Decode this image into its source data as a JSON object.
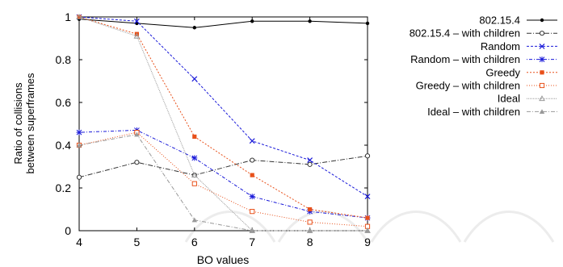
{
  "chart_data": {
    "type": "line",
    "xlabel": "BO values",
    "ylabel_lines": [
      "Ratio of collisions",
      "between superframes"
    ],
    "xlim": [
      4,
      9
    ],
    "ylim": [
      0,
      1
    ],
    "x": [
      4,
      5,
      6,
      7,
      8,
      9
    ],
    "x_ticks": [
      "4",
      "5",
      "6",
      "7",
      "8",
      "9"
    ],
    "y_ticks": [
      "0",
      "0.2",
      "0.4",
      "0.6",
      "0.8",
      "1"
    ],
    "grid": false,
    "legend_position": "right",
    "series": [
      {
        "name": "802.15.4",
        "color": "#000000",
        "marker": "dot",
        "dash": "",
        "values": [
          0.99,
          0.97,
          0.95,
          0.98,
          0.98,
          0.97
        ]
      },
      {
        "name": "802.15.4 – with children",
        "color": "#333333",
        "marker": "open-circle",
        "dash": "6,2,1,2",
        "values": [
          0.25,
          0.32,
          0.26,
          0.33,
          0.31,
          0.35
        ]
      },
      {
        "name": "Random",
        "color": "#1a1ad9",
        "marker": "x",
        "dash": "3,2",
        "values": [
          1.0,
          0.98,
          0.71,
          0.42,
          0.33,
          0.16
        ]
      },
      {
        "name": "Random – with children",
        "color": "#1a1ad9",
        "marker": "star",
        "dash": "1,2,4,2",
        "values": [
          0.46,
          0.47,
          0.34,
          0.16,
          0.09,
          0.06
        ]
      },
      {
        "name": "Greedy",
        "color": "#e8501a",
        "marker": "filled-square",
        "dash": "2,2",
        "values": [
          1.0,
          0.92,
          0.44,
          0.26,
          0.1,
          0.06
        ]
      },
      {
        "name": "Greedy – with children",
        "color": "#e8501a",
        "marker": "open-square",
        "dash": "1,2",
        "values": [
          0.4,
          0.46,
          0.22,
          0.09,
          0.04,
          0.02
        ]
      },
      {
        "name": "Ideal",
        "color": "#999999",
        "marker": "triangle",
        "dash": "1,1",
        "values": [
          1.0,
          0.91,
          0.26,
          0.0,
          0.0,
          0.0
        ]
      },
      {
        "name": "Ideal – with children",
        "color": "#999999",
        "marker": "filled-triangle",
        "dash": "5,2,1,2",
        "values": [
          0.4,
          0.45,
          0.05,
          0.0,
          0.0,
          0.0
        ]
      }
    ]
  }
}
